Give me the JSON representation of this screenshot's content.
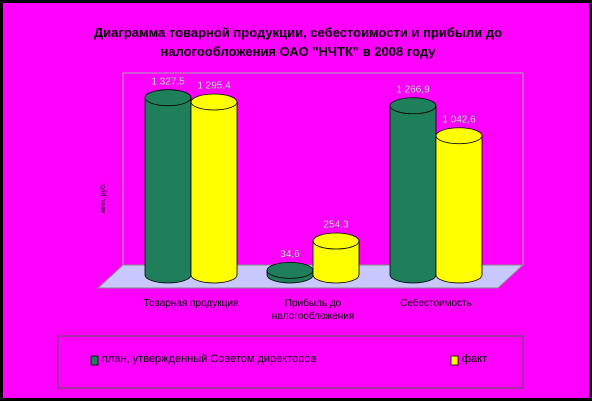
{
  "chart_data": {
    "type": "bar",
    "title": "Диаграмма товарной продукции, себестоимости и прибыли до налогообложения ОАО \"НЧТК\" в 2008 году",
    "y_label": "млн. руб.",
    "categories": [
      "Товарная продукция",
      "Прибыль до налогообложения",
      "Себестоимость"
    ],
    "series": [
      {
        "name": "план, утвержденный Советом директоров",
        "color": "#1f7f5a",
        "values": [
          1327.5,
          34.6,
          1266.9
        ],
        "value_labels": [
          "1 327,5",
          "34,6",
          "1 266,9"
        ]
      },
      {
        "name": "факт",
        "color": "#ffff00",
        "values": [
          1295.4,
          254.3,
          1042.6
        ],
        "value_labels": [
          "1 295,4",
          "254,3",
          "1 042,6"
        ]
      }
    ],
    "ylim": [
      0,
      1400
    ]
  }
}
